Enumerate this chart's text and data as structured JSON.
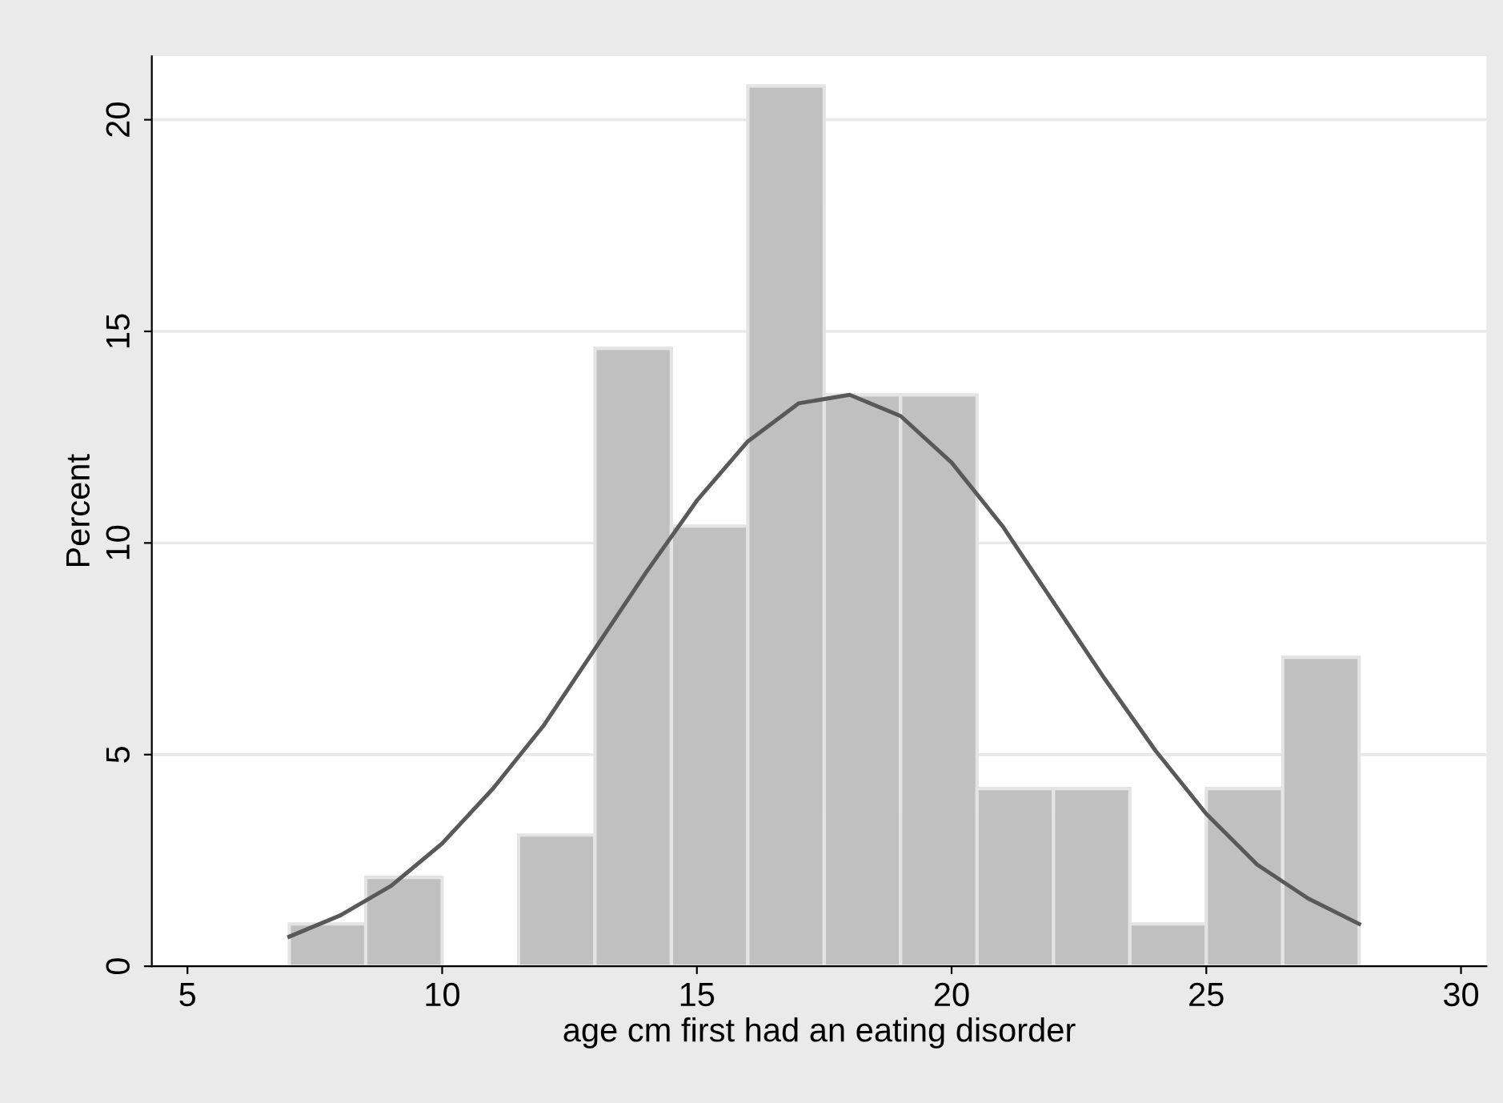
{
  "chart_data": {
    "type": "histogram",
    "xlabel": "age cm first had an eating disorder",
    "ylabel": "Percent",
    "bins": [
      7,
      8.5,
      10,
      11.5,
      13,
      14.5,
      16,
      17.5,
      19,
      20.5,
      22,
      23.5,
      25,
      26.5,
      28
    ],
    "values": [
      1,
      2.1,
      0,
      3.1,
      14.6,
      10.4,
      20.8,
      13.5,
      13.5,
      4.2,
      4.2,
      1,
      4.2,
      7.3
    ],
    "color": "#c0c0c0",
    "series": [
      {
        "type": "line",
        "color": "#595959",
        "x": [
          7,
          8,
          9,
          10,
          11,
          12,
          13,
          14,
          15,
          16,
          17,
          18,
          19,
          20,
          21,
          22,
          23,
          24,
          25,
          26,
          27,
          28
        ],
        "values": [
          0.7,
          1.2,
          1.9,
          2.9,
          4.2,
          5.7,
          7.5,
          9.3,
          11,
          12.4,
          13.3,
          13.5,
          13,
          11.9,
          10.4,
          8.6,
          6.8,
          5.1,
          3.6,
          2.4,
          1.6,
          1
        ]
      }
    ],
    "xlim": [
      4.3,
      30.5
    ],
    "ylim": [
      0,
      21.5
    ],
    "xticks": [
      5,
      10,
      15,
      20,
      25,
      30
    ],
    "yticks": [
      0,
      5,
      10,
      15,
      20
    ],
    "grid": "y"
  }
}
